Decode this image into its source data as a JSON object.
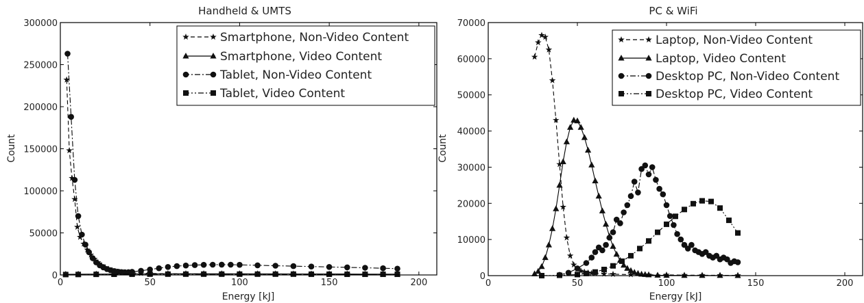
{
  "chart_data": [
    {
      "type": "line",
      "title": "Handheld & UMTS",
      "xlabel": "Energy [kJ]",
      "ylabel": "Count",
      "xlim": [
        0,
        210
      ],
      "ylim": [
        0,
        300000
      ],
      "xticks": [
        "0",
        "50",
        "100",
        "150",
        "200"
      ],
      "yticks": [
        "0",
        "50000",
        "100000",
        "150000",
        "200000",
        "250000",
        "300000"
      ],
      "legend_position": "top-right",
      "grid": false,
      "series": [
        {
          "name": "Smartphone, Non-Video Content",
          "marker": "star",
          "dash": "dashed",
          "x": [
            3.5,
            5,
            6.5,
            8,
            9.5,
            11,
            13,
            15,
            17,
            19,
            21,
            23,
            25,
            27,
            29,
            31,
            33,
            35,
            40,
            45,
            50,
            60,
            70,
            80,
            90,
            100,
            110,
            120,
            130,
            140,
            150,
            160,
            170,
            180,
            188
          ],
          "y": [
            232000,
            148000,
            115000,
            90000,
            57000,
            45000,
            37000,
            30000,
            24000,
            19000,
            15000,
            11500,
            9000,
            7000,
            5500,
            4300,
            3500,
            3000,
            2500,
            2000,
            1800,
            1500,
            1300,
            1200,
            1100,
            1000,
            950,
            900,
            850,
            800,
            750,
            700,
            650,
            600,
            550
          ]
        },
        {
          "name": "Smartphone, Video Content",
          "marker": "triangle",
          "dash": "solid",
          "x": [
            3,
            10,
            20,
            30,
            40,
            50,
            60,
            70,
            80,
            90,
            100,
            110,
            120,
            130,
            140,
            150,
            160,
            170,
            180,
            188
          ],
          "y": [
            800,
            900,
            1000,
            1100,
            1200,
            1300,
            1400,
            1400,
            1400,
            1400,
            1400,
            1300,
            1300,
            1200,
            1200,
            1100,
            1100,
            1000,
            1000,
            1000
          ]
        },
        {
          "name": "Tablet, Non-Video Content",
          "marker": "circle",
          "dash": "dashdot",
          "x": [
            4,
            6,
            8,
            10,
            12,
            14,
            16,
            18,
            20,
            22,
            24,
            26,
            28,
            30,
            32,
            34,
            36,
            38,
            40,
            45,
            50,
            55,
            60,
            65,
            70,
            75,
            80,
            85,
            90,
            95,
            100,
            110,
            120,
            130,
            140,
            150,
            160,
            170,
            180,
            188
          ],
          "y": [
            263000,
            188000,
            113000,
            70000,
            48000,
            36000,
            27000,
            20000,
            15000,
            11500,
            9000,
            7000,
            5600,
            4600,
            3900,
            3400,
            3200,
            3300,
            3700,
            5000,
            6500,
            8000,
            9500,
            10500,
            11200,
            11700,
            12000,
            12200,
            12300,
            12200,
            12000,
            11500,
            11000,
            10500,
            10000,
            9500,
            9000,
            8500,
            8000,
            7500
          ]
        },
        {
          "name": "Tablet, Video Content",
          "marker": "square",
          "dash": "dashdotdot",
          "x": [
            3,
            10,
            20,
            30,
            40,
            50,
            60,
            70,
            80,
            90,
            100,
            110,
            120,
            130,
            140,
            150,
            160,
            170,
            180,
            188
          ],
          "y": [
            500,
            600,
            700,
            800,
            900,
            1000,
            1000,
            1000,
            1000,
            1000,
            1000,
            1000,
            950,
            950,
            900,
            900,
            850,
            850,
            800,
            800
          ]
        }
      ]
    },
    {
      "type": "line",
      "title": "PC & WiFi",
      "xlabel": "Energy [kJ]",
      "ylabel": "Count",
      "xlim": [
        0,
        210
      ],
      "ylim": [
        0,
        70000
      ],
      "xticks": [
        "0",
        "50",
        "100",
        "150",
        "200"
      ],
      "yticks": [
        "0",
        "10000",
        "20000",
        "30000",
        "40000",
        "50000",
        "60000",
        "70000"
      ],
      "legend_position": "top-right",
      "grid": false,
      "series": [
        {
          "name": "Laptop, Non-Video Content",
          "marker": "star",
          "dash": "dashed",
          "x": [
            26,
            28,
            30,
            32,
            34,
            36,
            38,
            40,
            42,
            44,
            46,
            48,
            50,
            52,
            54,
            56,
            58,
            60,
            65,
            70,
            80,
            90,
            100,
            110,
            120,
            130,
            140
          ],
          "y": [
            60500,
            64500,
            66500,
            66000,
            62500,
            54000,
            43000,
            30800,
            19000,
            10500,
            5500,
            3000,
            1800,
            1300,
            1000,
            800,
            700,
            600,
            500,
            400,
            300,
            250,
            200,
            150,
            120,
            100,
            80
          ]
        },
        {
          "name": "Laptop, Video Content",
          "marker": "triangle",
          "dash": "solid",
          "x": [
            26,
            28,
            30,
            32,
            34,
            36,
            38,
            40,
            42,
            44,
            46,
            48,
            50,
            52,
            54,
            56,
            58,
            60,
            62,
            64,
            66,
            68,
            70,
            72,
            74,
            76,
            78,
            80,
            82,
            84,
            86,
            88,
            90,
            95,
            100,
            110,
            120,
            130,
            140
          ],
          "y": [
            500,
            1200,
            2500,
            5000,
            8500,
            13000,
            18500,
            25000,
            31500,
            37000,
            41000,
            43000,
            42800,
            41000,
            38200,
            34700,
            30600,
            26200,
            22000,
            17900,
            14200,
            10900,
            8100,
            5900,
            4200,
            2900,
            2000,
            1400,
            900,
            600,
            400,
            300,
            200,
            120,
            80,
            50,
            40,
            30,
            20
          ]
        },
        {
          "name": "Desktop PC, Non-Video Content",
          "marker": "circle",
          "dash": "dashdot",
          "x": [
            40,
            45,
            50,
            55,
            58,
            60,
            62,
            64,
            66,
            68,
            70,
            72,
            74,
            76,
            78,
            80,
            82,
            84,
            86,
            88,
            90,
            92,
            94,
            96,
            98,
            100,
            102,
            104,
            106,
            108,
            110,
            112,
            114,
            116,
            118,
            120,
            122,
            124,
            126,
            128,
            130,
            132,
            134,
            136,
            138,
            140
          ],
          "y": [
            200,
            800,
            2000,
            3500,
            5000,
            6500,
            7800,
            7000,
            8500,
            10500,
            12000,
            15500,
            14500,
            17500,
            19500,
            22000,
            26000,
            23000,
            29500,
            30500,
            28000,
            30000,
            26500,
            24000,
            22500,
            19500,
            16500,
            14000,
            11500,
            10000,
            8500,
            7500,
            8500,
            7000,
            6500,
            6000,
            6500,
            5500,
            5000,
            5500,
            4500,
            5000,
            4500,
            3500,
            4000,
            3700
          ]
        },
        {
          "name": "Desktop PC, Video Content",
          "marker": "square",
          "dash": "dashdotdot",
          "x": [
            30,
            40,
            50,
            55,
            60,
            65,
            70,
            75,
            80,
            85,
            90,
            95,
            100,
            105,
            110,
            115,
            120,
            125,
            130,
            135,
            140
          ],
          "y": [
            0,
            100,
            300,
            600,
            1000,
            1700,
            2700,
            4000,
            5500,
            7500,
            9600,
            12000,
            14200,
            16400,
            18300,
            19900,
            20700,
            20500,
            18700,
            15300,
            11800
          ]
        }
      ]
    }
  ]
}
